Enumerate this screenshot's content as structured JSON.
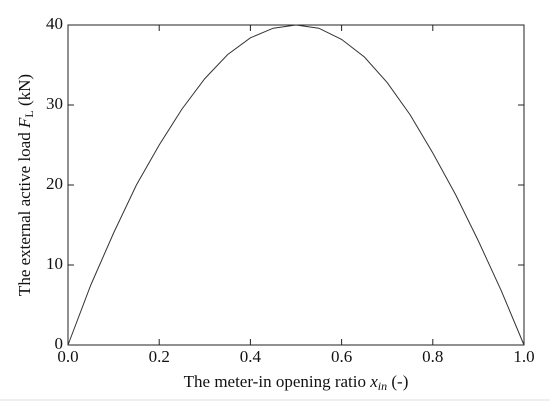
{
  "chart_data": {
    "type": "line",
    "xlabel": {
      "text": "The meter-in opening ratio ",
      "symbol": "x",
      "subscript": "in",
      "unit": " (-)"
    },
    "ylabel": {
      "text": "The external active load ",
      "symbol": "F",
      "subscript": "L",
      "unit": " (kN)"
    },
    "x": [
      0,
      0.05,
      0.1,
      0.15,
      0.2,
      0.25,
      0.3,
      0.35,
      0.4,
      0.45,
      0.5,
      0.55,
      0.6,
      0.65,
      0.7,
      0.75,
      0.8,
      0.85,
      0.9,
      0.95,
      1.0
    ],
    "series": [
      {
        "color": "#333333",
        "values": [
          0,
          7.5,
          14,
          20,
          25,
          29.5,
          33.3,
          36.3,
          38.4,
          39.6,
          40,
          39.6,
          38.2,
          36,
          32.8,
          28.8,
          24,
          18.8,
          13,
          6.8,
          0
        ]
      }
    ],
    "xlim": [
      0,
      1.0
    ],
    "ylim": [
      0,
      40
    ],
    "xticks": [
      {
        "value": 0,
        "label": "0.0"
      },
      0.2,
      0.4,
      0.6,
      0.8,
      {
        "value": 1.0,
        "label": "1.0"
      }
    ],
    "yticks": [
      0,
      10,
      20,
      30,
      40
    ],
    "grid": false
  }
}
